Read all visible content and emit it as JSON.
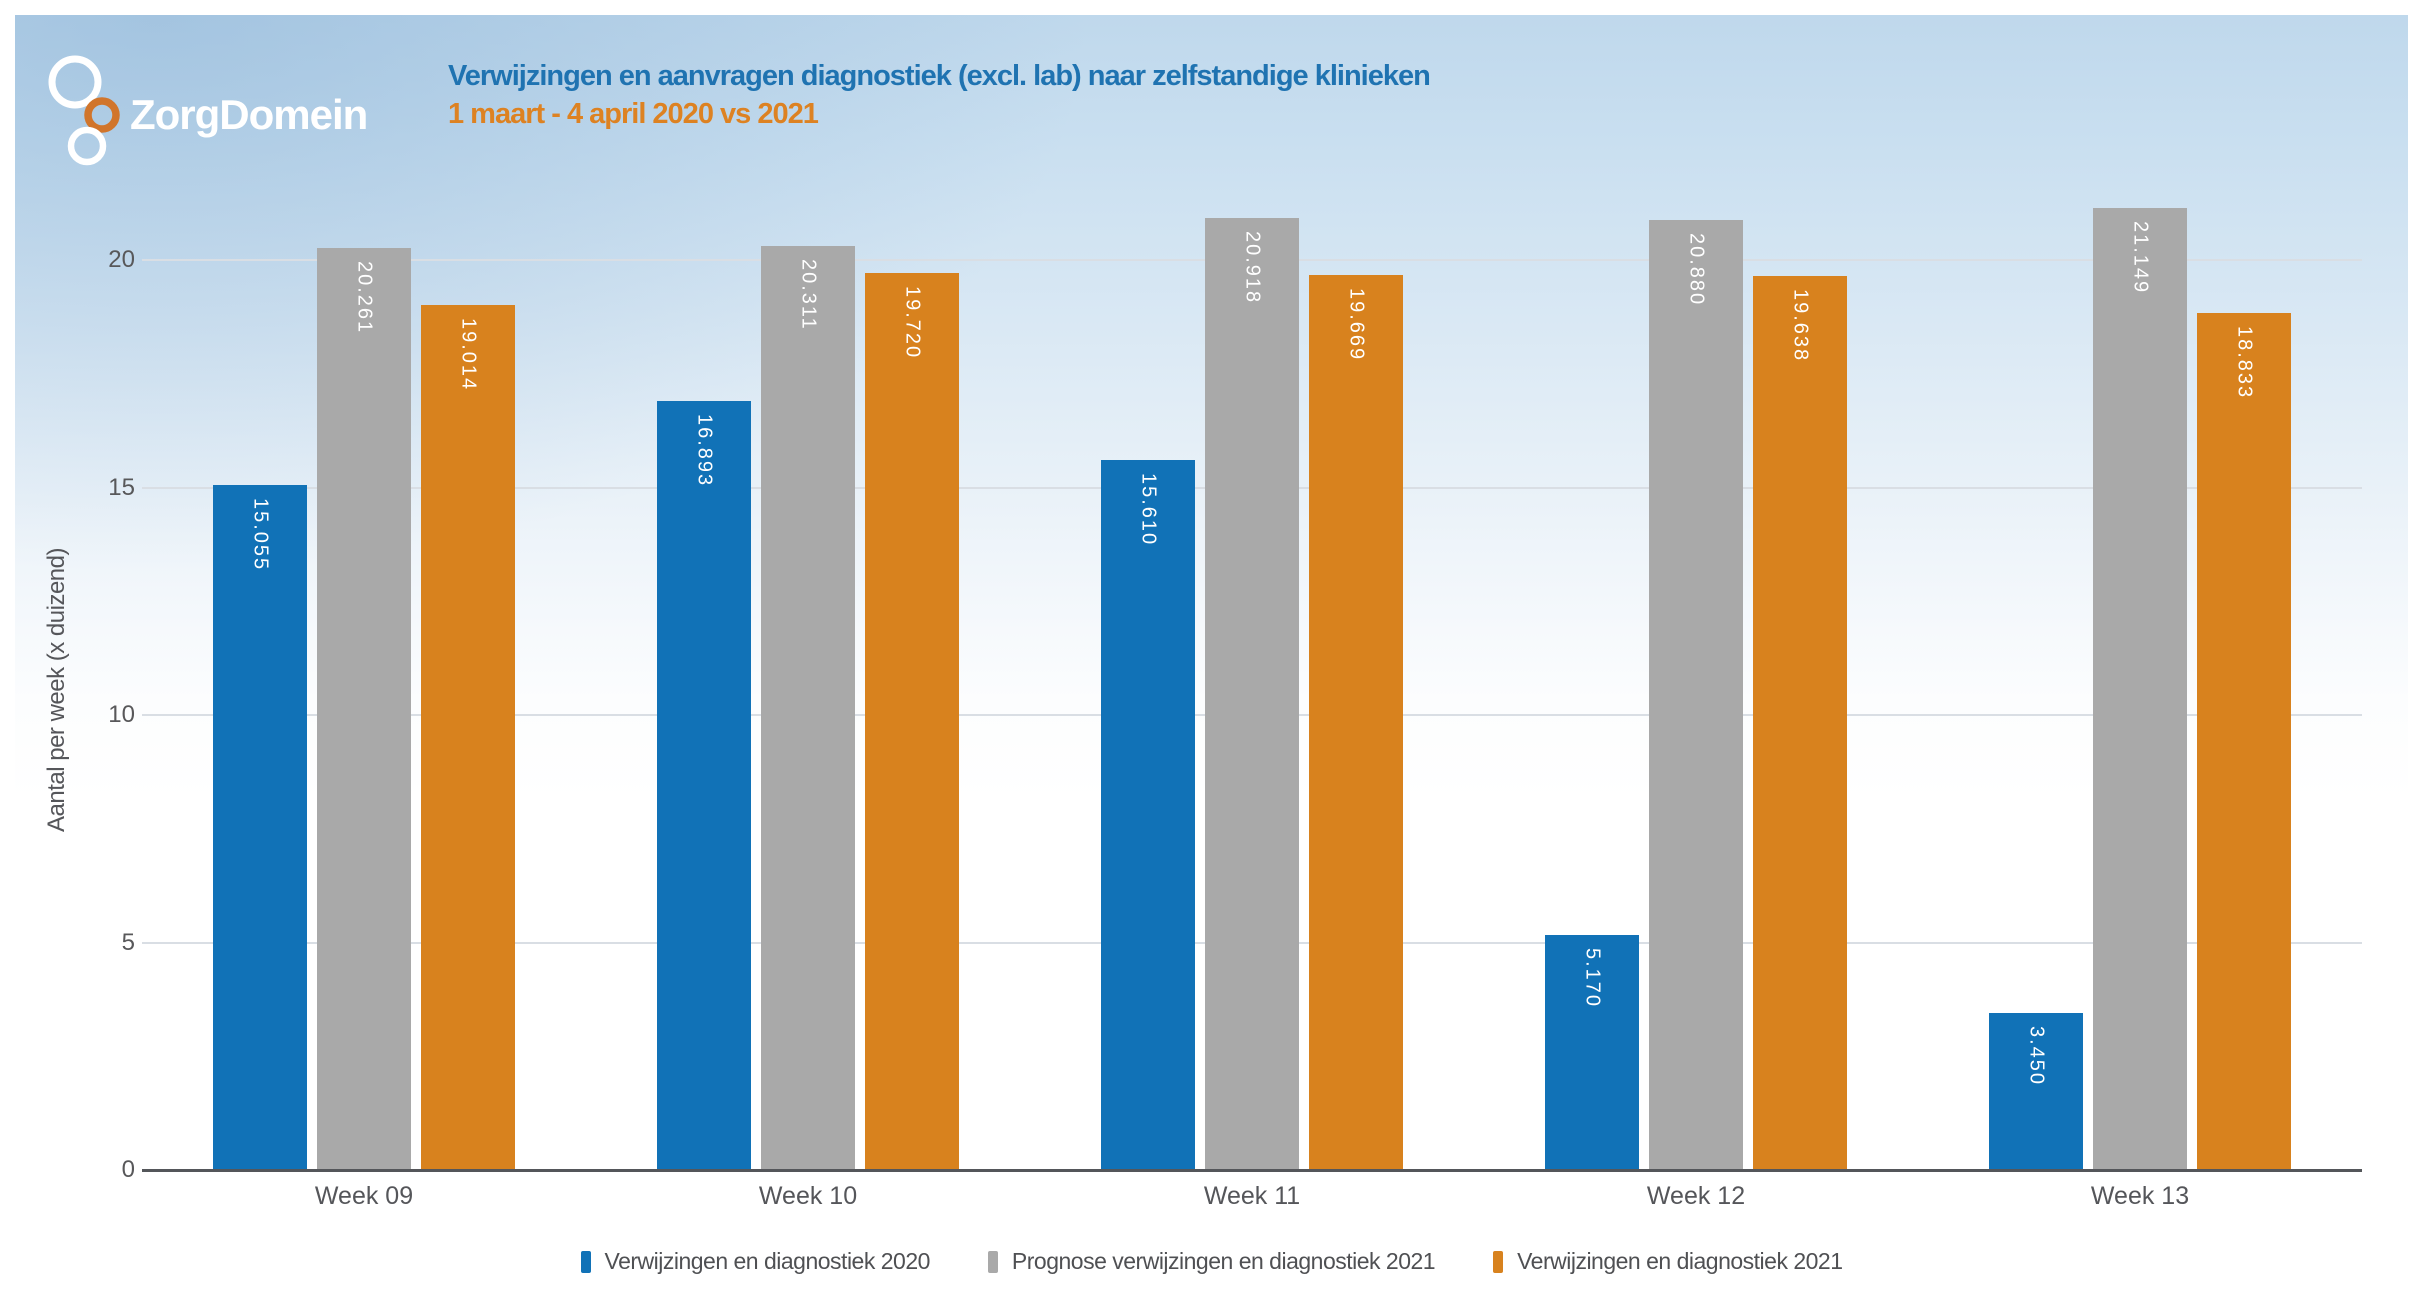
{
  "brand": {
    "name": "ZorgDomein"
  },
  "header": {
    "title": "Verwijzingen en aanvragen diagnostiek (excl. lab) naar zelfstandige klinieken",
    "subtitle": "1 maart - 4 april 2020 vs 2021"
  },
  "chart_data": {
    "type": "bar",
    "categories": [
      "Week 09",
      "Week 10",
      "Week 11",
      "Week 12",
      "Week 13"
    ],
    "series": [
      {
        "name": "Verwijzingen en diagnostiek 2020",
        "color": "#1172b7",
        "values": [
          15.055,
          16.893,
          15.61,
          5.17,
          3.45
        ],
        "labels": [
          "15.055",
          "16.893",
          "15.610",
          "5.170",
          "3.450"
        ]
      },
      {
        "name": "Prognose verwijzingen en diagnostiek 2021",
        "color": "#a9a9a9",
        "values": [
          20.261,
          20.311,
          20.918,
          20.88,
          21.149
        ],
        "labels": [
          "20.261",
          "20.311",
          "20.918",
          "20.880",
          "21.149"
        ]
      },
      {
        "name": "Verwijzingen en diagnostiek 2021",
        "color": "#d8821e",
        "values": [
          19.014,
          19.72,
          19.669,
          19.638,
          18.833
        ],
        "labels": [
          "19.014",
          "19.720",
          "19.669",
          "19.638",
          "18.833"
        ]
      }
    ],
    "title": "Verwijzingen en aanvragen diagnostiek (excl. lab) naar zelfstandige klinieken",
    "subtitle": "1 maart - 4 april 2020 vs 2021",
    "xlabel": "",
    "ylabel": "Aantal per week (x duizend)",
    "yticks": [
      0,
      5,
      10,
      15,
      20
    ],
    "ylim": [
      0,
      21.3
    ],
    "grid": true,
    "legend_position": "bottom"
  }
}
